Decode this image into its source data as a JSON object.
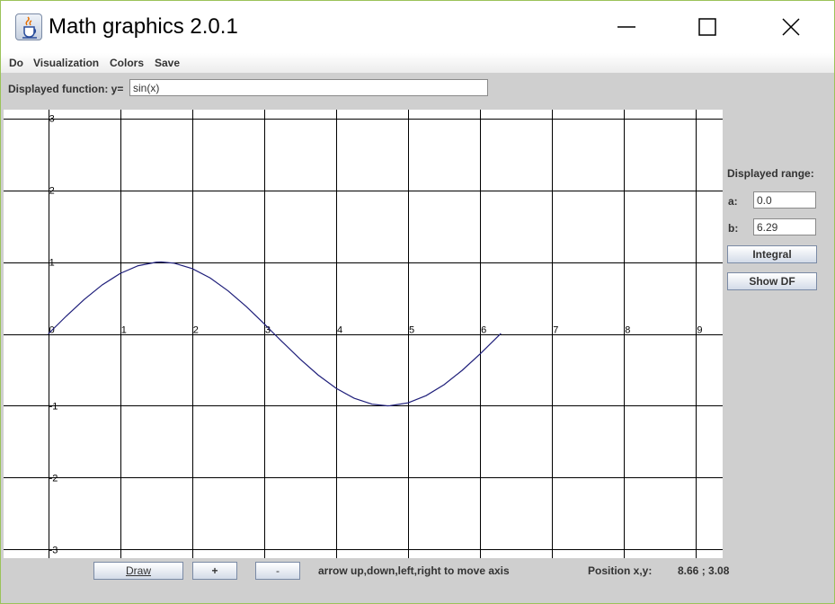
{
  "window": {
    "title": "Math graphics 2.0.1",
    "app_icon": "java-cup-icon",
    "controls": {
      "minimize": "minimize-icon",
      "maximize": "maximize-icon",
      "close": "close-icon"
    }
  },
  "menu": {
    "items": [
      {
        "label": "Do"
      },
      {
        "label": "Visualization"
      },
      {
        "label": "Colors"
      },
      {
        "label": "Save"
      }
    ]
  },
  "function": {
    "label": "Displayed function: y=",
    "value": "sin(x)"
  },
  "range": {
    "title": "Displayed range:",
    "a_label": "a:",
    "a_value": "0.0",
    "b_label": "b:",
    "b_value": "6.29",
    "integral_button": "Integral",
    "show_df_button": "Show DF"
  },
  "bottom": {
    "draw_button": "Draw",
    "plus_button": "+",
    "minus_button": "-",
    "hint": "arrow up,down,left,right to move axis",
    "position_label": "Position x,y:",
    "position_value": "8.66 ; 3.08"
  },
  "colors": {
    "curve": "#1e1e7a",
    "grid": "#000000",
    "plot_background": "#ffffff",
    "panel_background": "#cfcfcf"
  },
  "chart_data": {
    "type": "line",
    "title": "",
    "xlabel": "",
    "ylabel": "",
    "function": "sin(x)",
    "domain": [
      0,
      6.29
    ],
    "xlim": [
      -0.62,
      9.37
    ],
    "ylim": [
      -3.12,
      3.12
    ],
    "x_ticks": [
      "0",
      "1",
      "2",
      "3",
      "4",
      "5",
      "6",
      "7",
      "8",
      "9"
    ],
    "y_ticks": [
      "3",
      "2",
      "1",
      "-1",
      "-2",
      "-3"
    ],
    "grid": true,
    "series": [
      {
        "x": [
          0,
          0.25,
          0.5,
          0.75,
          1.0,
          1.25,
          1.5,
          1.57,
          1.75,
          2.0,
          2.25,
          2.5,
          2.75,
          3.0,
          3.14,
          3.25,
          3.5,
          3.75,
          4.0,
          4.25,
          4.5,
          4.71,
          4.75,
          5.0,
          5.25,
          5.5,
          5.75,
          6.0,
          6.29
        ],
        "y": [
          0,
          0.247,
          0.479,
          0.682,
          0.841,
          0.949,
          0.997,
          1.0,
          0.984,
          0.909,
          0.778,
          0.598,
          0.382,
          0.141,
          0.0,
          -0.108,
          -0.351,
          -0.572,
          -0.757,
          -0.895,
          -0.978,
          -1.0,
          -0.999,
          -0.959,
          -0.859,
          -0.706,
          -0.508,
          -0.279,
          0.007
        ]
      }
    ]
  }
}
